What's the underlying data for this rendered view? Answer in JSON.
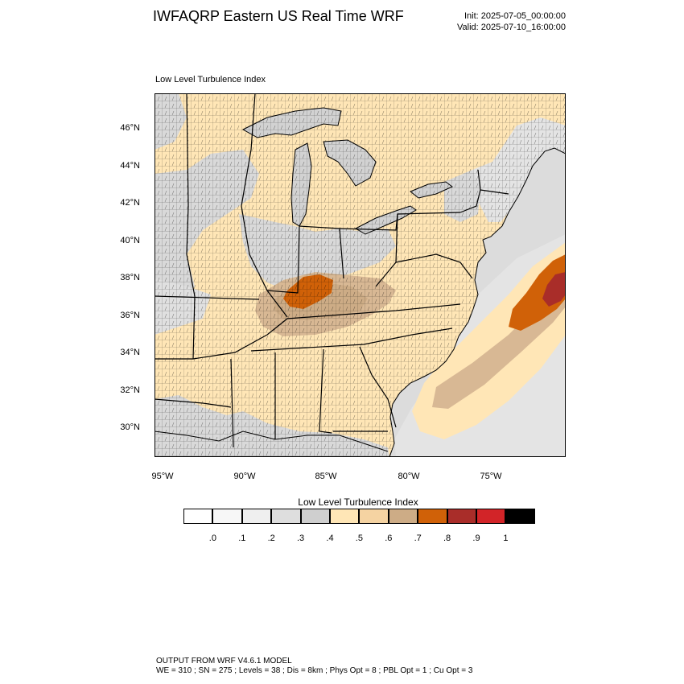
{
  "header": {
    "title": "IWFAQRP Eastern US Real Time WRF",
    "init": "Init: 2025-07-05_00:00:00",
    "valid": "Valid: 2025-07-10_16:00:00"
  },
  "panel": {
    "title": "Low Level Turbulence Index"
  },
  "axes": {
    "lat_labels": [
      "46°N",
      "44°N",
      "42°N",
      "40°N",
      "38°N",
      "36°N",
      "34°N",
      "32°N",
      "30°N"
    ],
    "lon_labels": [
      "95°W",
      "90°W",
      "85°W",
      "80°W",
      "75°W"
    ]
  },
  "colorbar": {
    "title": "Low Level Turbulence Index",
    "labels": [
      ".0",
      ".1",
      ".2",
      ".3",
      ".4",
      ".5",
      ".6",
      ".7",
      ".8",
      ".9",
      "1"
    ],
    "colors": [
      "#ffffff",
      "#f7f7f7",
      "#efefef",
      "#dedede",
      "#cfcfcf",
      "#ffe6b6",
      "#f5d3a2",
      "#cdac86",
      "#d06108",
      "#a92d29",
      "#d22428",
      "#000000"
    ]
  },
  "map_colors": {
    "water": "#dcdcdc",
    "land": "#ffe6b6",
    "lake": "#d2d2d2",
    "gray_low": "#d9d9d9",
    "tan": "#d8b894",
    "brown": "#cdac86",
    "orange": "#d06108",
    "red": "#a92d29"
  },
  "footer": {
    "line1": "OUTPUT FROM WRF V4.6.1 MODEL",
    "line2": "WE = 310 ; SN = 275 ; Levels = 38 ; Dis = 8km ; Phys Opt = 8 ; PBL Opt = 1 ; Cu Opt = 3"
  }
}
